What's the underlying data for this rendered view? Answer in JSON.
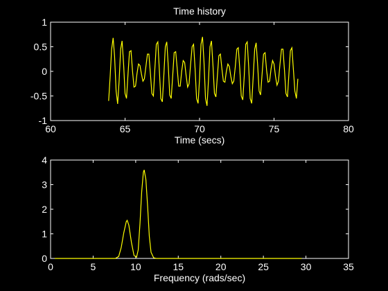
{
  "figure": {
    "background": "#000000",
    "foreground": "#ffffff"
  },
  "chart_data": [
    {
      "type": "line",
      "title": "Time history",
      "xlabel": "Time (secs)",
      "ylabel": "",
      "xlim": [
        60,
        80
      ],
      "ylim": [
        -1,
        1
      ],
      "xticks": [
        60,
        65,
        70,
        75,
        80
      ],
      "xtick_labels": [
        "60",
        "65",
        "70",
        "75",
        "80"
      ],
      "yticks": [
        -1,
        -0.5,
        0,
        0.5,
        1
      ],
      "ytick_labels": [
        "-1",
        "-0.5",
        "0",
        "0.5",
        "1"
      ],
      "grid": false,
      "series": [
        {
          "color": "#ffff00",
          "x": [
            63.9,
            64.0,
            64.1,
            64.2,
            64.3,
            64.4,
            64.5,
            64.6,
            64.7,
            64.8,
            64.9,
            65.0,
            65.1,
            65.2,
            65.3,
            65.4,
            65.5,
            65.6,
            65.7,
            65.8,
            65.9,
            66.0,
            66.1,
            66.2,
            66.3,
            66.4,
            66.5,
            66.6,
            66.7,
            66.8,
            66.9,
            67.0,
            67.1,
            67.2,
            67.3,
            67.4,
            67.5,
            67.6,
            67.7,
            67.8,
            67.9,
            68.0,
            68.1,
            68.2,
            68.3,
            68.4,
            68.5,
            68.6,
            68.7,
            68.8,
            68.9,
            69.0,
            69.1,
            69.2,
            69.3,
            69.4,
            69.5,
            69.6,
            69.7,
            69.8,
            69.9,
            70.0,
            70.1,
            70.2,
            70.3,
            70.4,
            70.5,
            70.6,
            70.7,
            70.8,
            70.9,
            71.0,
            71.1,
            71.2,
            71.3,
            71.4,
            71.5,
            71.6,
            71.7,
            71.8,
            71.9,
            72.0,
            72.1,
            72.2,
            72.3,
            72.4,
            72.5,
            72.6,
            72.7,
            72.8,
            72.9,
            73.0,
            73.1,
            73.2,
            73.3,
            73.4,
            73.5,
            73.6,
            73.7,
            73.8,
            73.9,
            74.0,
            74.1,
            74.2,
            74.3,
            74.4,
            74.5,
            74.6,
            74.7,
            74.8,
            74.9,
            75.0,
            75.1,
            75.2,
            75.3,
            75.4,
            75.5,
            75.6,
            75.7,
            75.8,
            75.9,
            76.0,
            76.1,
            76.2,
            76.3,
            76.4,
            76.5,
            76.6
          ],
          "y": [
            -0.6,
            -0.1,
            0.45,
            0.68,
            0.3,
            -0.4,
            -0.66,
            -0.2,
            0.45,
            0.62,
            0.15,
            -0.45,
            -0.55,
            -0.05,
            0.4,
            0.42,
            0.0,
            -0.32,
            -0.3,
            -0.05,
            0.15,
            0.12,
            -0.05,
            -0.2,
            -0.15,
            0.1,
            0.35,
            0.35,
            -0.05,
            -0.45,
            -0.5,
            0.05,
            0.55,
            0.6,
            0.05,
            -0.55,
            -0.62,
            -0.1,
            0.5,
            0.6,
            0.1,
            -0.48,
            -0.55,
            -0.08,
            0.38,
            0.4,
            0.05,
            -0.3,
            -0.3,
            0.0,
            0.22,
            0.18,
            -0.08,
            -0.32,
            -0.25,
            0.15,
            0.5,
            0.55,
            0.05,
            -0.55,
            -0.65,
            -0.15,
            0.55,
            0.7,
            0.2,
            -0.55,
            -0.7,
            -0.18,
            0.5,
            0.62,
            0.12,
            -0.45,
            -0.52,
            -0.08,
            0.32,
            0.35,
            0.05,
            -0.2,
            -0.22,
            0.0,
            0.15,
            0.1,
            -0.1,
            -0.25,
            -0.2,
            0.1,
            0.45,
            0.48,
            0.05,
            -0.5,
            -0.58,
            -0.1,
            0.55,
            0.6,
            0.1,
            -0.55,
            -0.65,
            -0.12,
            0.45,
            0.58,
            0.12,
            -0.4,
            -0.48,
            -0.05,
            0.35,
            0.38,
            0.02,
            -0.22,
            -0.2,
            0.05,
            0.22,
            0.15,
            -0.1,
            -0.28,
            -0.2,
            0.15,
            0.45,
            0.45,
            0.02,
            -0.45,
            -0.52,
            -0.05,
            0.42,
            0.48,
            0.05,
            -0.4,
            -0.55,
            -0.15
          ]
        }
      ]
    },
    {
      "type": "line",
      "title": "",
      "xlabel": "Frequency (rads/sec)",
      "ylabel": "",
      "xlim": [
        0,
        35
      ],
      "ylim": [
        0,
        4
      ],
      "xticks": [
        0,
        5,
        10,
        15,
        20,
        25,
        30,
        35
      ],
      "xtick_labels": [
        "0",
        "5",
        "10",
        "15",
        "20",
        "25",
        "30",
        "35"
      ],
      "yticks": [
        0,
        1,
        2,
        3,
        4
      ],
      "ytick_labels": [
        "0",
        "1",
        "2",
        "3",
        "4"
      ],
      "grid": false,
      "series": [
        {
          "color": "#ffff00",
          "x": [
            0.5,
            5.0,
            7.6,
            8.0,
            8.3,
            8.6,
            8.9,
            9.0,
            9.2,
            9.5,
            9.8,
            10.1,
            10.3,
            10.5,
            10.7,
            10.9,
            11.0,
            11.2,
            11.4,
            11.6,
            11.8,
            12.1,
            12.4,
            15.0,
            20.0,
            25.0,
            29.5
          ],
          "y": [
            0.0,
            0.0,
            0.0,
            0.08,
            0.45,
            1.05,
            1.5,
            1.55,
            1.35,
            0.65,
            0.12,
            0.05,
            0.35,
            1.4,
            2.7,
            3.5,
            3.6,
            3.2,
            2.1,
            0.9,
            0.25,
            0.03,
            0.0,
            0.0,
            0.0,
            0.0,
            0.0
          ]
        }
      ]
    }
  ]
}
